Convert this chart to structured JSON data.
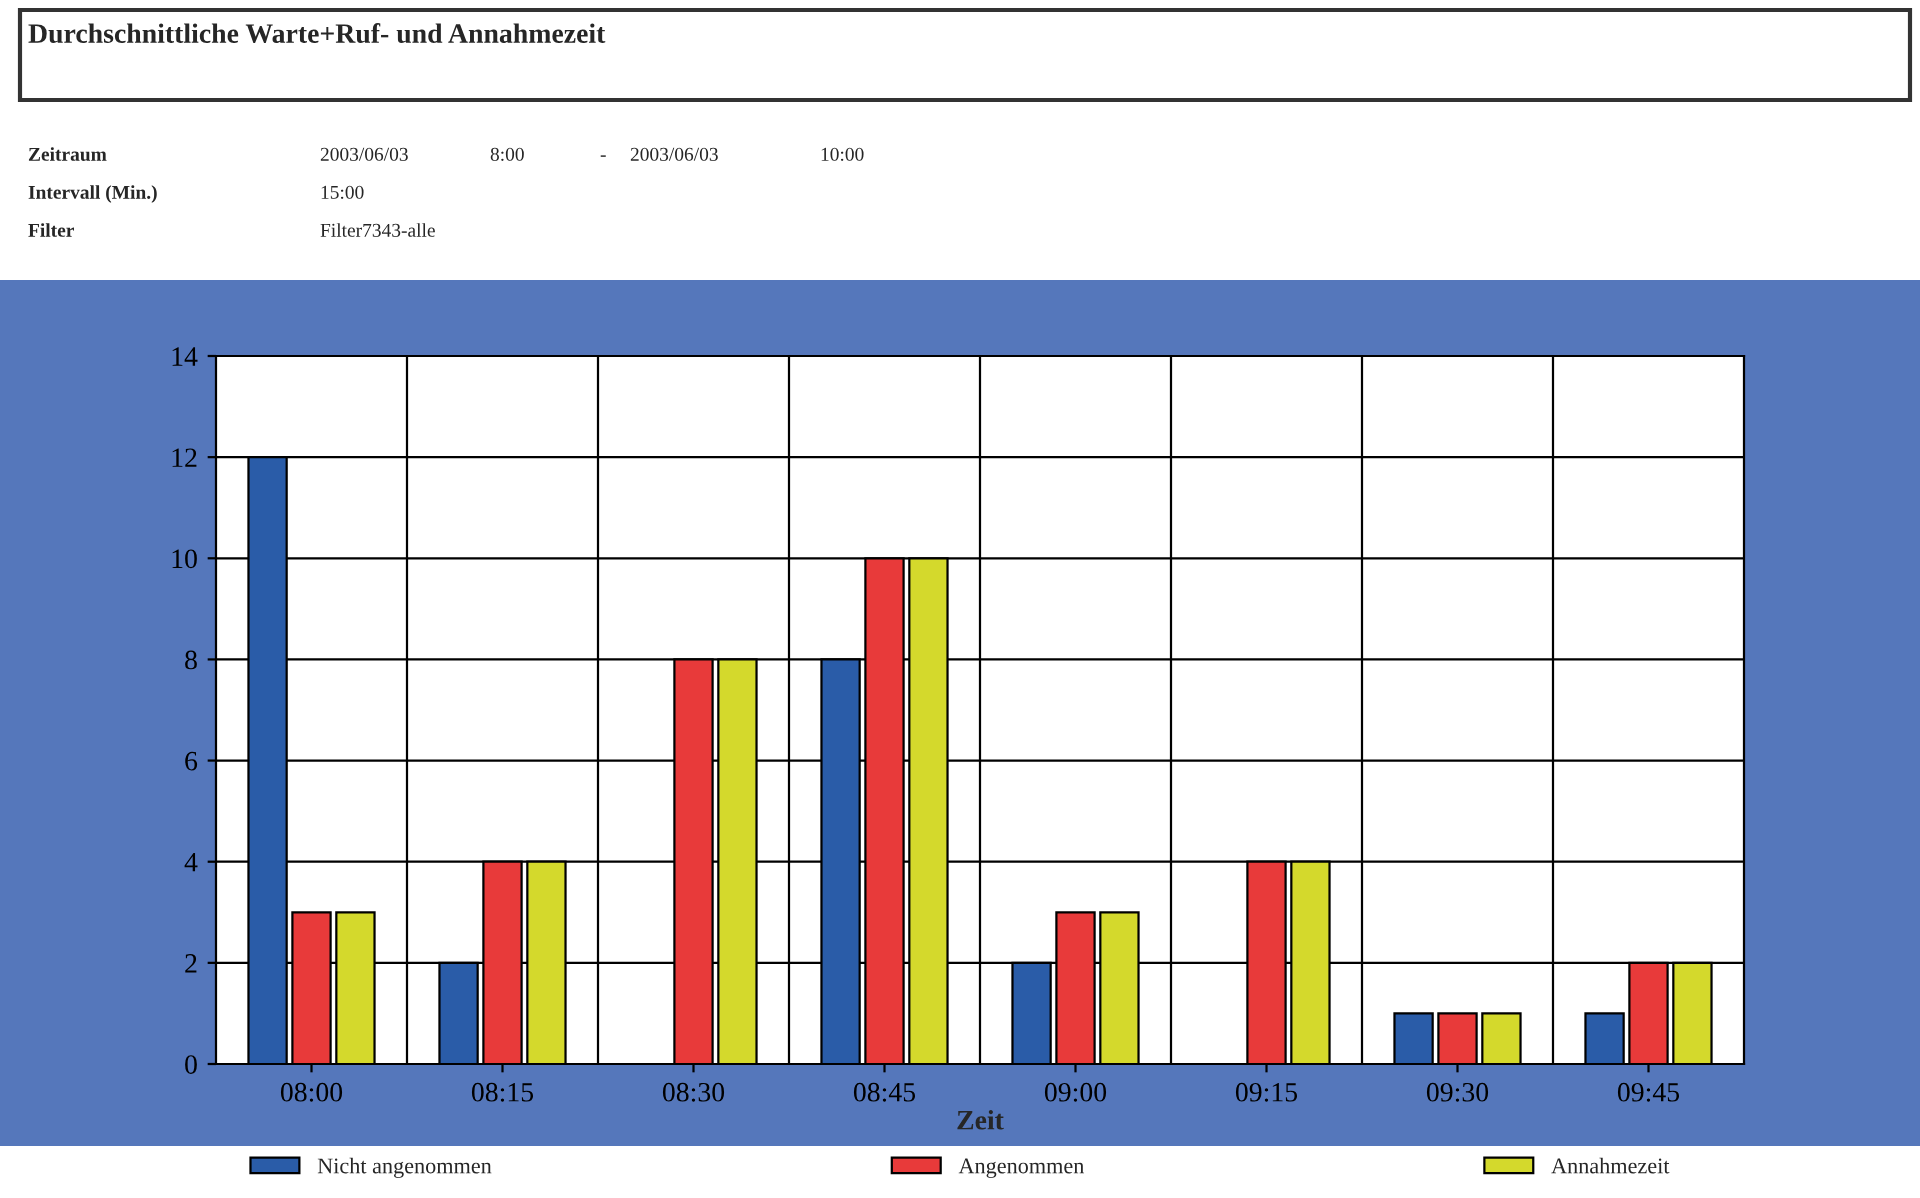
{
  "chart_data": {
    "type": "bar",
    "title": "Durchschnittliche Warte+Ruf- und Annahmezeit",
    "annotations": [
      "Zeitraum",
      "2003/06/03",
      "8:00",
      "-",
      "2003/06/03",
      "10:00",
      "Intervall (Min.)",
      "15:00",
      "Filter",
      "Filter7343-alle"
    ],
    "categories": [
      "08:00",
      "08:15",
      "08:30",
      "08:45",
      "09:00",
      "09:15",
      "09:30",
      "09:45"
    ],
    "xlabel": "Zeit",
    "series": [
      {
        "name": "Nicht angenommen",
        "color": "#2a5ca8",
        "values": [
          12,
          2,
          0,
          8,
          2,
          0,
          1,
          1
        ]
      },
      {
        "name": "Angenommen",
        "color": "#e83a3a",
        "values": [
          3,
          4,
          8,
          10,
          3,
          4,
          1,
          2
        ]
      },
      {
        "name": "Annahmezeit",
        "color": "#d4d92c",
        "values": [
          3,
          4,
          8,
          10,
          3,
          4,
          1,
          2
        ]
      }
    ],
    "ylim": [
      0,
      14
    ],
    "yticks": [
      0,
      2,
      4,
      6,
      8,
      10,
      12,
      14
    ],
    "grid": true,
    "legend": "bottom"
  }
}
